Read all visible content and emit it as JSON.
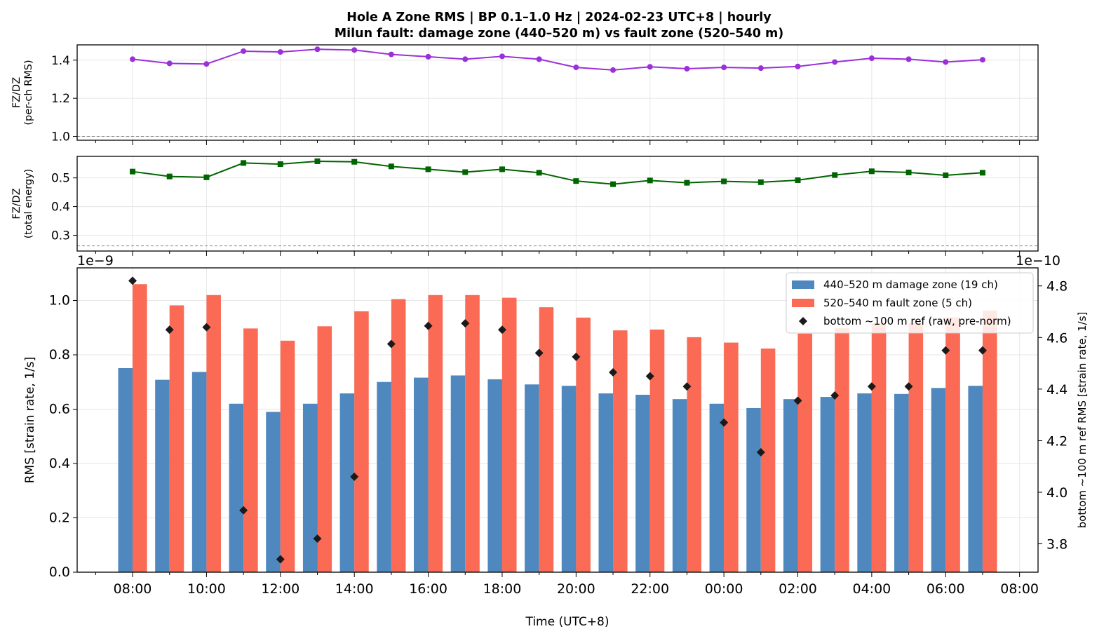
{
  "title_line1": "Hole A Zone RMS  |  BP 0.1–1.0 Hz  |  2024-02-23 UTC+8  |  hourly",
  "title_line2": "Milun fault: damage zone (440–520 m) vs fault zone (520–540 m)",
  "colors": {
    "ratio_rms": "#9b30d9",
    "ratio_energy": "#006400",
    "dz_bar": "#4f88bf",
    "fz_bar": "#fa6a55",
    "ref": "#1a1a1a"
  },
  "chart_data": [
    {
      "type": "line",
      "ylabel_line1": "FZ/DZ",
      "ylabel_line2": "(per-ch RMS)",
      "ylim": [
        0.98,
        1.48
      ],
      "yticks": [
        1.0,
        1.2,
        1.4
      ],
      "ytick_labels": [
        "1.0",
        "1.2",
        "1.4"
      ],
      "reference_line": 1.0,
      "series": [
        {
          "values": [
            1.405,
            1.383,
            1.38,
            1.447,
            1.443,
            1.457,
            1.453,
            1.43,
            1.418,
            1.405,
            1.42,
            1.405,
            1.362,
            1.348,
            1.365,
            1.355,
            1.362,
            1.358,
            1.367,
            1.39,
            1.41,
            1.405,
            1.39,
            1.402
          ]
        }
      ]
    },
    {
      "type": "line",
      "ylabel_line1": "FZ/DZ",
      "ylabel_line2": "(total energy)",
      "ylim": [
        0.245,
        0.575
      ],
      "yticks": [
        0.3,
        0.4,
        0.5
      ],
      "ytick_labels": [
        "0.3",
        "0.4",
        "0.5"
      ],
      "reference_line": 0.263,
      "series": [
        {
          "values": [
            0.522,
            0.505,
            0.502,
            0.552,
            0.548,
            0.558,
            0.556,
            0.54,
            0.53,
            0.52,
            0.53,
            0.518,
            0.489,
            0.478,
            0.491,
            0.483,
            0.488,
            0.485,
            0.492,
            0.51,
            0.523,
            0.519,
            0.509,
            0.518
          ]
        }
      ]
    },
    {
      "type": "bar",
      "xlabel": "Time (UTC+8)",
      "ylabel": "RMS  [strain rate, 1/s]",
      "y2label": "bottom ~100 m ref RMS  [strain rate, 1/s]",
      "offset_left": "1e−9",
      "offset_right": "1e−10",
      "ylim": [
        0,
        1.12
      ],
      "yticks": [
        0.0,
        0.2,
        0.4,
        0.6,
        0.8,
        1.0
      ],
      "ytick_labels": [
        "0.0",
        "0.2",
        "0.4",
        "0.6",
        "0.8",
        "1.0"
      ],
      "y2lim": [
        3.69,
        4.87
      ],
      "y2ticks": [
        3.8,
        4.0,
        4.2,
        4.4,
        4.6,
        4.8
      ],
      "y2tick_labels": [
        "3.8",
        "4.0",
        "4.2",
        "4.4",
        "4.6",
        "4.8"
      ],
      "hours": [
        8,
        9,
        10,
        11,
        12,
        13,
        14,
        15,
        16,
        17,
        18,
        19,
        20,
        21,
        22,
        23,
        24,
        25,
        26,
        27,
        28,
        29,
        30,
        31
      ],
      "xlim_hours": [
        6.5,
        32.5
      ],
      "xtick_hours": [
        8,
        10,
        12,
        14,
        16,
        18,
        20,
        22,
        24,
        26,
        28,
        30,
        32
      ],
      "xtick_labels": [
        "08:00",
        "10:00",
        "12:00",
        "14:00",
        "16:00",
        "18:00",
        "20:00",
        "22:00",
        "00:00",
        "02:00",
        "04:00",
        "06:00",
        "08:00"
      ],
      "legend_position": "top-right",
      "series": [
        {
          "name": "440–520 m  damage zone (19 ch)",
          "values": [
            0.751,
            0.708,
            0.737,
            0.62,
            0.59,
            0.62,
            0.658,
            0.7,
            0.716,
            0.724,
            0.71,
            0.691,
            0.686,
            0.658,
            0.653,
            0.637,
            0.62,
            0.604,
            0.637,
            0.645,
            0.658,
            0.656,
            0.678,
            0.686
          ]
        },
        {
          "name": "520–540 m  fault zone (5 ch)",
          "values": [
            1.06,
            0.982,
            1.02,
            0.897,
            0.852,
            0.905,
            0.96,
            1.005,
            1.02,
            1.02,
            1.01,
            0.975,
            0.937,
            0.89,
            0.893,
            0.865,
            0.845,
            0.823,
            0.878,
            0.898,
            0.915,
            0.918,
            0.938,
            0.963
          ]
        },
        {
          "name": "bottom ~100 m ref (raw, pre-norm)",
          "axis": "right",
          "values": [
            4.82,
            4.63,
            4.64,
            3.93,
            3.74,
            3.82,
            4.06,
            4.575,
            4.645,
            4.655,
            4.63,
            4.54,
            4.525,
            4.465,
            4.45,
            4.41,
            4.27,
            4.155,
            4.355,
            4.375,
            4.41,
            4.41,
            4.55,
            4.55
          ]
        }
      ]
    }
  ]
}
